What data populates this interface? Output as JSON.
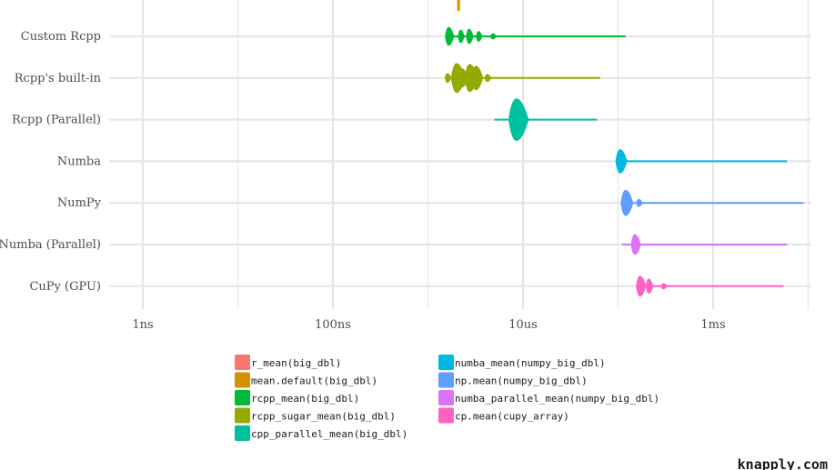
{
  "chart_data": {
    "type": "violin",
    "x_scale": "log",
    "x_ticks": [
      {
        "label": "1ns",
        "seconds": 1e-09
      },
      {
        "label": "100ns",
        "seconds": 1e-07
      },
      {
        "label": "10us",
        "seconds": 1e-05
      },
      {
        "label": "1ms",
        "seconds": 0.001
      }
    ],
    "x_range_seconds": [
      2.5e-10,
      0.012
    ],
    "grid": true,
    "legend_position": "bottom",
    "series": [
      {
        "row": "",
        "legend": "r_mean(big_dbl)",
        "color": "#F8766D",
        "range_s": [
          null,
          null
        ],
        "modes_s": []
      },
      {
        "row": "",
        "legend": "mean.default(big_dbl)",
        "color": "#D39200",
        "range_s": [
          2e-06,
          2.4e-06
        ],
        "modes_s": [
          {
            "t": 2.1e-06,
            "h": 14
          }
        ]
      },
      {
        "row": "Custom Rcpp",
        "legend": "rcpp_mean(big_dbl)",
        "color": "#00BA38",
        "range_s": [
          1.55e-06,
          0.00012
        ],
        "modes_s": [
          {
            "t": 1.65e-06,
            "h": 20
          },
          {
            "t": 2.2e-06,
            "h": 14
          },
          {
            "t": 2.7e-06,
            "h": 16
          },
          {
            "t": 3.4e-06,
            "h": 11
          },
          {
            "t": 4.8e-06,
            "h": 6
          }
        ]
      },
      {
        "row": "Rcpp's built-in",
        "legend": "rcpp_sugar_mean(big_dbl)",
        "color": "#93AA00",
        "range_s": [
          1.55e-06,
          6.5e-05
        ],
        "modes_s": [
          {
            "t": 1.6e-06,
            "h": 10
          },
          {
            "t": 2e-06,
            "h": 32
          },
          {
            "t": 2.3e-06,
            "h": 20
          },
          {
            "t": 2.75e-06,
            "h": 30
          },
          {
            "t": 3.2e-06,
            "h": 26
          },
          {
            "t": 4.2e-06,
            "h": 8
          }
        ]
      },
      {
        "row": "Rcpp (Parallel)",
        "legend": "cpp_parallel_mean(big_dbl)",
        "color": "#00C19F",
        "range_s": [
          5e-06,
          6e-05
        ],
        "modes_s": [
          {
            "t": 8.5e-06,
            "h": 46
          }
        ]
      },
      {
        "row": "Numba",
        "legend": "numba_mean(numpy_big_dbl)",
        "color": "#00B9E3",
        "range_s": [
          0.0001,
          0.006
        ],
        "modes_s": [
          {
            "t": 0.000105,
            "h": 26
          }
        ]
      },
      {
        "row": "NumPy",
        "legend": "np.mean(numpy_big_dbl)",
        "color": "#619CFF",
        "range_s": [
          0.00011,
          0.009
        ],
        "modes_s": [
          {
            "t": 0.00012,
            "h": 28
          },
          {
            "t": 0.000165,
            "h": 8
          }
        ]
      },
      {
        "row": "Numba (Parallel)",
        "legend": "numba_parallel_mean(numpy_big_dbl)",
        "color": "#DB72FB",
        "range_s": [
          0.00011,
          0.006
        ],
        "modes_s": [
          {
            "t": 0.00015,
            "h": 22
          }
        ]
      },
      {
        "row": "CuPy (GPU)",
        "legend": "cp.mean(cupy_array)",
        "color": "#FF61C3",
        "range_s": [
          0.00016,
          0.0055
        ],
        "modes_s": [
          {
            "t": 0.00017,
            "h": 22
          },
          {
            "t": 0.00021,
            "h": 16
          },
          {
            "t": 0.0003,
            "h": 6
          }
        ]
      }
    ]
  },
  "watermark": "knapply.com"
}
